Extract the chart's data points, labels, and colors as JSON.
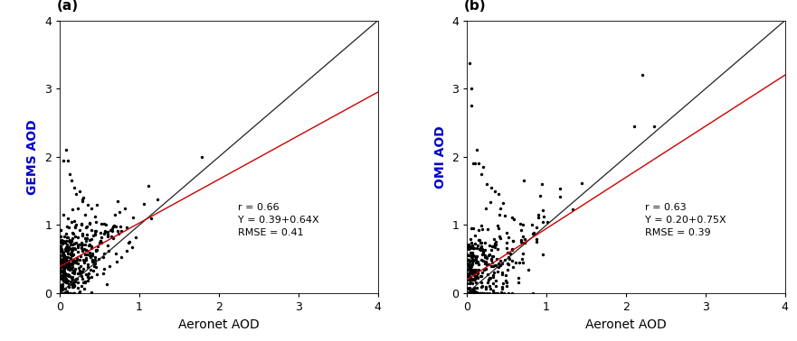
{
  "panel_a": {
    "label": "(a)",
    "ylabel": "GEMS AOD",
    "ylabel_color": "#0000cc",
    "xlabel": "Aeronet AOD",
    "intercept": 0.39,
    "slope": 0.64,
    "annotation_line1": "r = 0.66",
    "annotation_line2": "Y = 0.39+0.64X",
    "annotation_line3": "RMSE = 0.41",
    "xlim": [
      0,
      4
    ],
    "ylim": [
      0,
      4
    ],
    "xticks": [
      0,
      1,
      2,
      3,
      4
    ],
    "yticks": [
      0,
      1,
      2,
      3,
      4
    ]
  },
  "panel_b": {
    "label": "(b)",
    "ylabel": "OMI AOD",
    "ylabel_color": "#0000cc",
    "xlabel": "Aeronet AOD",
    "intercept": 0.2,
    "slope": 0.75,
    "annotation_line1": "r = 0.63",
    "annotation_line2": "Y = 0.20+0.75X",
    "annotation_line3": "RMSE = 0.39",
    "xlim": [
      0,
      4
    ],
    "ylim": [
      0,
      4
    ],
    "xticks": [
      0,
      1,
      2,
      3,
      4
    ],
    "yticks": [
      0,
      1,
      2,
      3,
      4
    ]
  },
  "scatter_color": "#000000",
  "scatter_size": 6,
  "scatter_marker": "o",
  "line1_color": "#222222",
  "line2_color": "#cc0000",
  "annotation_fontsize": 8,
  "label_fontsize": 11,
  "axis_label_fontsize": 10,
  "tick_fontsize": 9,
  "background_color": "#ffffff",
  "seed_a": 7,
  "seed_b": 13
}
